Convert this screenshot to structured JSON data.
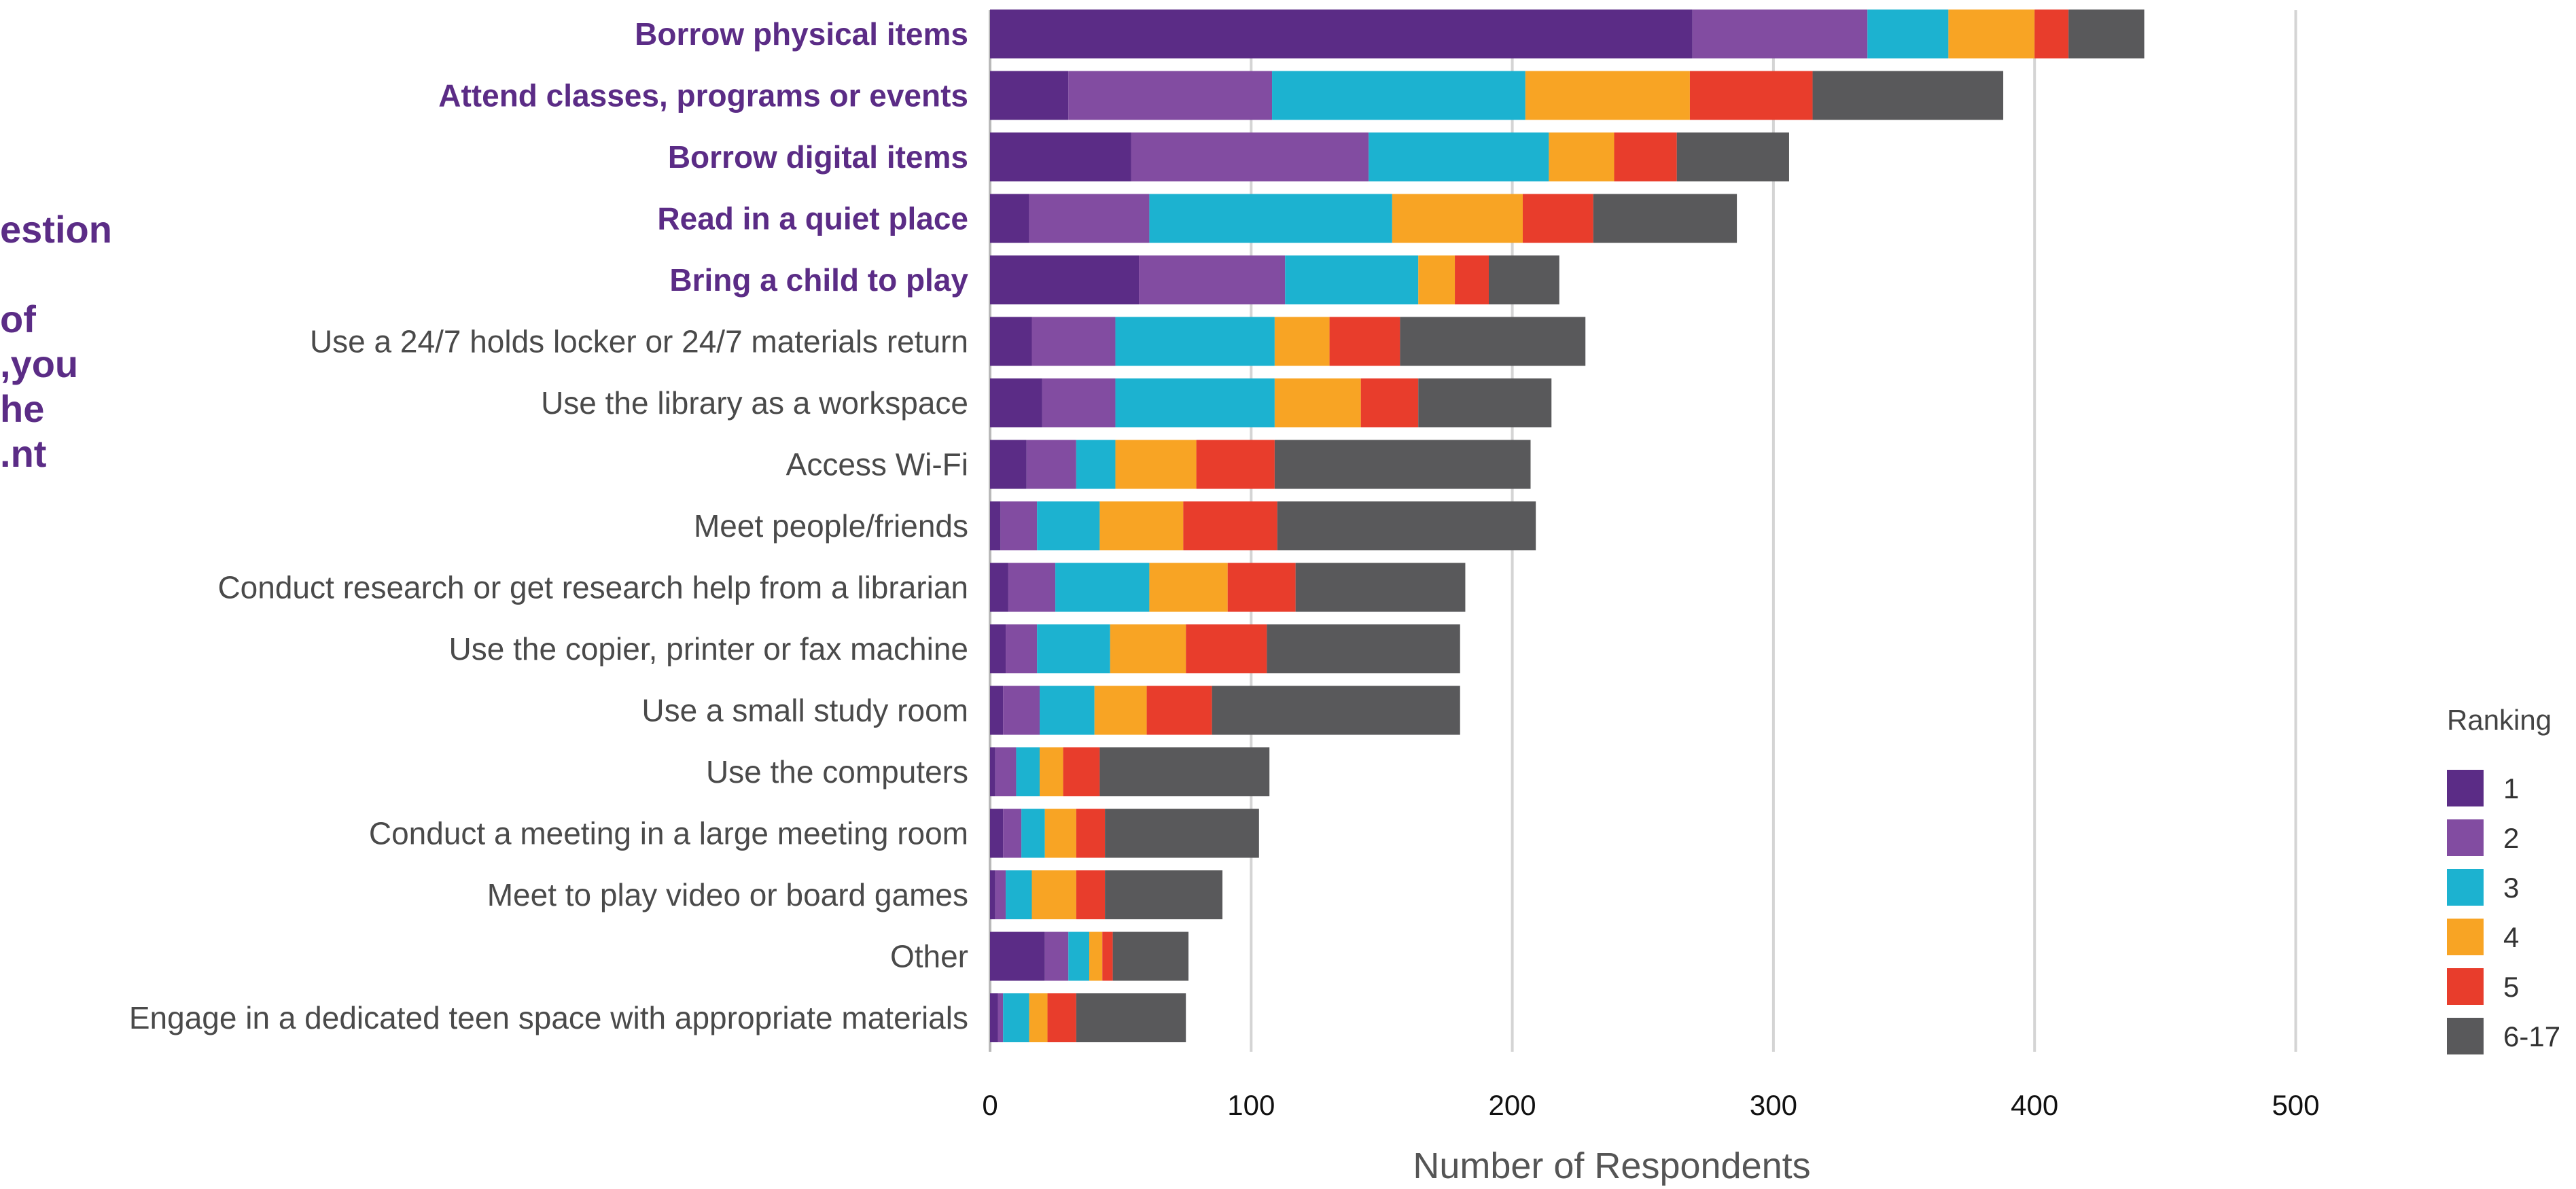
{
  "question_fragment": "estion\n\nof\n you,\nhe\nnt.",
  "chart_data": {
    "type": "bar",
    "orientation": "horizontal",
    "stacked": true,
    "xlabel": "Number of Respondents",
    "xlim": [
      0,
      500
    ],
    "xticks": [
      0,
      100,
      200,
      300,
      400,
      500
    ],
    "grid": true,
    "legend": {
      "title": "Ranking",
      "position": "right"
    },
    "categories": [
      "Borrow physical items",
      "Attend classes, programs or events",
      "Borrow digital items",
      "Read in a quiet place",
      "Bring a child to play",
      "Use a 24/7 holds locker or 24/7 materials return",
      "Use the library as a workspace",
      "Access Wi-Fi",
      "Meet people/friends",
      "Conduct research or get research help from a librarian",
      "Use the copier, printer or fax machine",
      "Use a small study room",
      "Use the computers",
      "Conduct a meeting in a large meeting room",
      "Meet to play video or board games",
      "Other",
      "Engage in a dedicated teen space with appropriate materials"
    ],
    "highlighted_count": 5,
    "series": [
      {
        "name": "1",
        "color": "#5b2c86",
        "values": [
          269,
          30,
          54,
          15,
          57,
          16,
          20,
          14,
          4,
          7,
          6,
          5,
          2,
          5,
          2,
          21,
          3
        ]
      },
      {
        "name": "2",
        "color": "#824ca1",
        "values": [
          67,
          78,
          91,
          46,
          56,
          32,
          28,
          19,
          14,
          18,
          12,
          14,
          8,
          7,
          4,
          9,
          2
        ]
      },
      {
        "name": "3",
        "color": "#1cb2d0",
        "values": [
          31,
          97,
          69,
          93,
          51,
          61,
          61,
          15,
          24,
          36,
          28,
          21,
          9,
          9,
          10,
          8,
          10
        ]
      },
      {
        "name": "4",
        "color": "#f8a424",
        "values": [
          33,
          63,
          25,
          50,
          14,
          21,
          33,
          31,
          32,
          30,
          29,
          20,
          9,
          12,
          17,
          5,
          7
        ]
      },
      {
        "name": "5",
        "color": "#e83d2c",
        "values": [
          13,
          47,
          24,
          27,
          13,
          27,
          22,
          30,
          36,
          26,
          31,
          25,
          14,
          11,
          11,
          4,
          11
        ]
      },
      {
        "name": "6-17",
        "color": "#59595b",
        "values": [
          29,
          73,
          43,
          55,
          27,
          71,
          51,
          98,
          99,
          65,
          74,
          95,
          65,
          59,
          45,
          29,
          42
        ]
      }
    ]
  }
}
